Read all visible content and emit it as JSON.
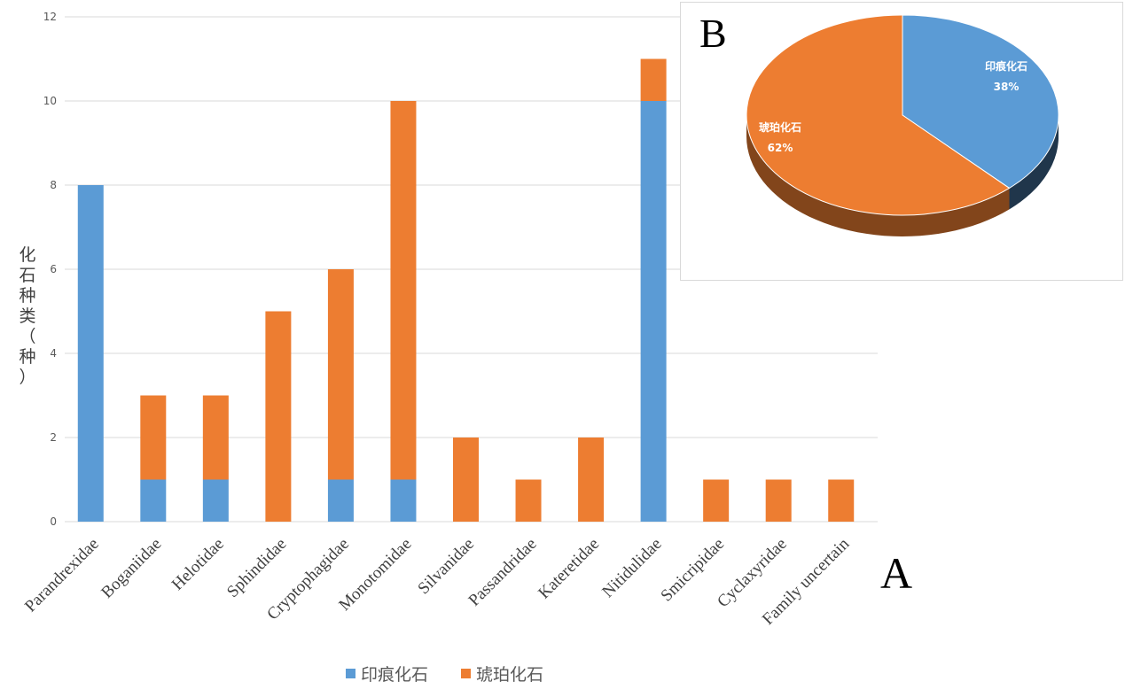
{
  "panel_labels": {
    "a": "A",
    "b": "B"
  },
  "colors": {
    "imprint": "#5b9bd5",
    "amber": "#ed7d31",
    "grid": "#d9d9d9",
    "tick": "#595959"
  },
  "chart_data": [
    {
      "id": "A",
      "type": "bar",
      "stacked": true,
      "ylabel": "化石种类（种）",
      "ylim": [
        0,
        12
      ],
      "yticks": [
        0,
        2,
        4,
        6,
        8,
        10,
        12
      ],
      "ytick_labels": [
        "0",
        "2",
        "4",
        "6",
        "8",
        "10",
        "12"
      ],
      "grid": true,
      "legend_position": "bottom",
      "categories": [
        "Parandrexidae",
        "Boganiidae",
        "Helotidae",
        "Sphindidae",
        "Cryptophagidae",
        "Monotomidae",
        "Silvanidae",
        "Passandridae",
        "Kateretidae",
        "Nitidulidae",
        "Smicripidae",
        "Cyclaxyridae",
        "Family uncertain"
      ],
      "series": [
        {
          "name": "印痕化石",
          "color": "#5b9bd5",
          "values": [
            8,
            1,
            1,
            0,
            1,
            1,
            0,
            0,
            0,
            10,
            0,
            0,
            0
          ]
        },
        {
          "name": "琥珀化石",
          "color": "#ed7d31",
          "values": [
            0,
            2,
            2,
            5,
            5,
            9,
            2,
            1,
            2,
            1,
            1,
            1,
            1
          ]
        }
      ]
    },
    {
      "id": "B",
      "type": "pie",
      "style": "3d",
      "labels": [
        "印痕化石",
        "琥珀化石"
      ],
      "values": [
        38,
        62
      ],
      "value_labels": [
        "38%",
        "62%"
      ],
      "colors": [
        "#5b9bd5",
        "#ed7d31"
      ]
    }
  ]
}
